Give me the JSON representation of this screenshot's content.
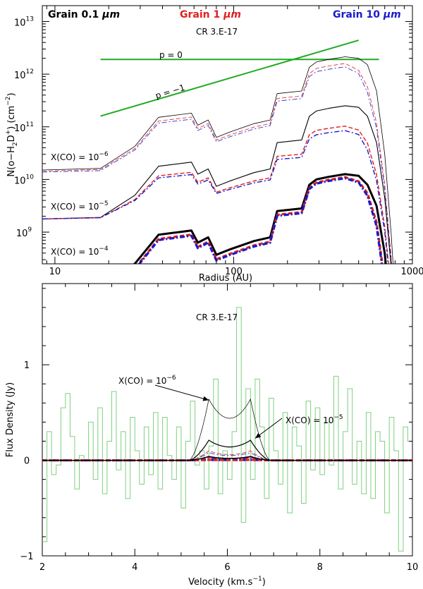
{
  "chart_data": [
    {
      "type": "line",
      "title": "CR 3.E-17",
      "xlabel": "Radius (AU)",
      "ylabel_main": "N(o−H",
      "ylabel_sub": "2",
      "ylabel_mid": "D",
      "ylabel_sup": "+",
      "ylabel_end": ") (cm",
      "ylabel_sup2": "−2",
      "ylabel_close": ")",
      "xscale": "log",
      "yscale": "log",
      "xlim": [
        8.5,
        1000
      ],
      "ylim": [
        250000000.0,
        20000000000000.0
      ],
      "xticks": [
        {
          "value": 10,
          "label": "10"
        },
        {
          "value": 100,
          "label": "100"
        },
        {
          "value": 1000,
          "label": "1000"
        }
      ],
      "yticks": [
        {
          "value": 1000000000.0,
          "base": "10",
          "exp": "9"
        },
        {
          "value": 10000000000.0,
          "base": "10",
          "exp": "10"
        },
        {
          "value": 100000000000.0,
          "base": "10",
          "exp": "11"
        },
        {
          "value": 1000000000000.0,
          "base": "10",
          "exp": "12"
        },
        {
          "value": 10000000000000.0,
          "base": "10",
          "exp": "13"
        }
      ],
      "legend": [
        {
          "prefix": "Grain 0.1 ",
          "mu": "μ",
          "unit": "m",
          "color": "#000000",
          "position": "top-left"
        },
        {
          "prefix": "Grain 1 ",
          "mu": "μ",
          "unit": "m",
          "color": "#e02020",
          "position": "top-center"
        },
        {
          "prefix": "Grain 10 ",
          "mu": "μ",
          "unit": "m",
          "color": "#1a1acc",
          "position": "top-right"
        }
      ],
      "annotations": [
        {
          "text": "p = 0"
        },
        {
          "text": "p = −1"
        },
        {
          "base": "X(CO) = 10",
          "exp": "−6"
        },
        {
          "base": "X(CO) = 10",
          "exp": "−5"
        },
        {
          "base": "X(CO) = 10",
          "exp": "−4"
        }
      ],
      "reference_lines": [
        {
          "name": "p = 0",
          "color": "#22aa22",
          "x": [
            18,
            650
          ],
          "y": [
            1900000000000.0,
            1900000000000.0
          ]
        },
        {
          "name": "p = -1",
          "color": "#22aa22",
          "x": [
            18,
            500
          ],
          "y": [
            160000000000.0,
            4400000000000.0
          ]
        }
      ],
      "x": [
        8.5,
        18,
        28,
        38,
        58,
        63,
        72,
        80,
        95,
        130,
        160,
        175,
        240,
        265,
        290,
        340,
        420,
        500,
        560,
        630,
        700,
        760,
        830
      ],
      "shape": [
        0,
        0.03,
        0.45,
        1.0,
        1.08,
        0.85,
        0.95,
        0.62,
        0.72,
        0.88,
        0.95,
        1.45,
        1.5,
        1.95,
        2.05,
        2.1,
        2.15,
        2.12,
        2.0,
        1.7,
        1.1,
        0.4,
        -0.35
      ],
      "series": [
        {
          "name": "Grain 0.1 μm, X(CO)=1e-6",
          "color": "#000000",
          "style": "solid",
          "width": 0.8,
          "base_log": 10.18,
          "amp": 1.0,
          "drop": [
            0,
            0,
            0,
            0,
            0,
            0,
            0,
            0,
            0,
            0,
            0,
            0,
            0,
            0,
            0,
            0,
            0,
            0,
            0,
            0.2,
            0.8,
            1.6,
            2.9
          ]
        },
        {
          "name": "Grain 1 μm, X(CO)=1e-6",
          "color": "#e02020",
          "style": "dashed",
          "width": 0.8,
          "base_log": 10.16,
          "amp": 0.95,
          "drop": [
            0,
            0,
            0,
            0,
            0,
            0,
            0,
            0,
            0,
            0,
            0,
            0,
            0,
            0,
            0,
            0,
            0,
            0.1,
            0.3,
            0.7,
            1.3,
            2.0,
            3.1
          ]
        },
        {
          "name": "Grain 10 μm, X(CO)=1e-6",
          "color": "#1a1acc",
          "style": "dashdot",
          "width": 0.8,
          "base_log": 10.14,
          "amp": 0.93,
          "drop": [
            0,
            0,
            0,
            0,
            0,
            0,
            0,
            0,
            0,
            0,
            0,
            0,
            0,
            0,
            0,
            0,
            0,
            0.1,
            0.35,
            0.75,
            1.35,
            2.05,
            3.15
          ]
        },
        {
          "name": "Grain 0.1 μm, X(CO)=1e-5",
          "color": "#000000",
          "style": "solid",
          "width": 1.1,
          "base_log": 9.25,
          "amp": 1.0,
          "drop": [
            0,
            0,
            0,
            0,
            0,
            0,
            0,
            0,
            0,
            0,
            0,
            0,
            0,
            0,
            0,
            0,
            0,
            0,
            0.05,
            0.25,
            0.7,
            1.3,
            2.35
          ]
        },
        {
          "name": "Grain 1 μm, X(CO)=1e-5",
          "color": "#e02020",
          "style": "dashed",
          "width": 1.4,
          "base_log": 9.25,
          "amp": 0.82,
          "drop": [
            0,
            0,
            0,
            0,
            0,
            0,
            0,
            0,
            0,
            0,
            0,
            0,
            0,
            0,
            0,
            0,
            0,
            0.05,
            0.2,
            0.55,
            1.05,
            1.65,
            2.55
          ]
        },
        {
          "name": "Grain 10 μm, X(CO)=1e-5",
          "color": "#1a1acc",
          "style": "dashdot",
          "width": 1.4,
          "base_log": 9.25,
          "amp": 0.78,
          "drop": [
            0,
            0,
            0,
            0,
            0,
            0,
            0,
            0,
            0,
            0,
            0,
            0,
            0,
            0,
            0,
            0,
            0,
            0.05,
            0.25,
            0.6,
            1.1,
            1.7,
            2.6
          ]
        },
        {
          "name": "Grain 0.1 μm, X(CO)=1e-4",
          "color": "#000000",
          "style": "solid",
          "width": 3.0,
          "base_log": 7.95,
          "amp": 1.0,
          "drop": [
            0,
            0,
            0,
            0,
            0,
            0,
            0,
            0,
            0,
            0,
            0,
            0,
            0,
            0,
            0,
            0,
            0,
            0,
            0.05,
            0.15,
            0.45,
            0.95,
            1.7
          ]
        },
        {
          "name": "Grain 1 μm, X(CO)=1e-4",
          "color": "#e02020",
          "style": "dashed",
          "width": 3.2,
          "base_log": 7.85,
          "amp": 1.02,
          "drop": [
            0,
            0,
            0,
            0,
            0,
            0,
            0,
            0,
            0,
            0,
            0,
            0,
            0,
            0,
            0,
            0,
            0,
            0.05,
            0.15,
            0.4,
            0.9,
            1.55,
            2.2
          ]
        },
        {
          "name": "Grain 10 μm, X(CO)=1e-4",
          "color": "#1a1acc",
          "style": "dashdot",
          "width": 3.2,
          "base_log": 7.83,
          "amp": 1.02,
          "drop": [
            0,
            0,
            0,
            0,
            0,
            0,
            0,
            0,
            0,
            0,
            0,
            0,
            0,
            0,
            0,
            0,
            0,
            0.05,
            0.18,
            0.45,
            0.95,
            1.6,
            2.25
          ]
        }
      ]
    },
    {
      "type": "line",
      "title": "CR 3.E-17",
      "xlabel": "Velocity (km.s",
      "xlabel_sup": "−1",
      "xlabel_close": ")",
      "ylabel": "Flux Density (Jy)",
      "xlim": [
        2,
        10
      ],
      "ylim": [
        -1,
        1.85
      ],
      "xticks": [
        {
          "value": 2,
          "label": "2"
        },
        {
          "value": 4,
          "label": "4"
        },
        {
          "value": 6,
          "label": "6"
        },
        {
          "value": 8,
          "label": "8"
        },
        {
          "value": 10,
          "label": "10"
        }
      ],
      "yticks": [
        {
          "value": -1,
          "label": "−1"
        },
        {
          "value": 0,
          "label": "0"
        },
        {
          "value": 1,
          "label": "1"
        }
      ],
      "annotations": [
        {
          "base": "X(CO) = 10",
          "exp": "−6",
          "arrow_to": {
            "x": 5.6,
            "y": 0.63
          }
        },
        {
          "base": "X(CO) = 10",
          "exp": "−5",
          "arrow_to": {
            "x": 6.6,
            "y": 0.23
          }
        }
      ],
      "observed": {
        "name": "observed spectrum",
        "color": "#7fd07f",
        "x_start": 2.0,
        "step": 0.1,
        "y": [
          -0.85,
          0.3,
          -0.15,
          -0.05,
          0.55,
          0.7,
          0.25,
          -0.3,
          0.05,
          0.0,
          0.4,
          -0.2,
          0.55,
          -0.35,
          0.2,
          0.72,
          -0.1,
          0.3,
          -0.4,
          0.45,
          0.1,
          -0.25,
          0.35,
          -0.15,
          0.5,
          -0.3,
          0.45,
          0.05,
          -0.2,
          0.35,
          -0.5,
          0.2,
          0.62,
          -0.05,
          0.1,
          -0.3,
          0.15,
          0.85,
          -0.35,
          0.1,
          -0.2,
          0.3,
          1.6,
          -0.65,
          0.75,
          -0.2,
          0.85,
          0.35,
          -0.4,
          0.65,
          0.1,
          -0.25,
          0.5,
          -0.55,
          0.35,
          0.15,
          -0.45,
          0.62,
          -0.1,
          0.55,
          -0.15,
          0.4,
          -0.05,
          0.88,
          -0.3,
          0.3,
          0.75,
          -0.25,
          0.2,
          -0.35,
          0.5,
          -0.4,
          0.3,
          0.2,
          -0.55,
          0.45,
          0.1,
          -0.95,
          0.35,
          0.2
        ]
      },
      "series": [
        {
          "name": "Grain 0.1 μm, X(CO)=1e-6",
          "color": "#000000",
          "style": "solid",
          "width": 0.7,
          "peak": 0.64,
          "trough": 0.44
        },
        {
          "name": "Grain 0.1 μm, X(CO)=1e-5",
          "color": "#000000",
          "style": "solid",
          "width": 1.2,
          "peak": 0.21,
          "trough": 0.14
        },
        {
          "name": "Grain 0.1 μm, X(CO)=1e-4",
          "color": "#000000",
          "style": "solid",
          "width": 1.5,
          "peak": 0.04,
          "trough": 0.02
        },
        {
          "name": "Grain 1 μm, X(CO)=1e-6",
          "color": "#e02020",
          "style": "dashed",
          "width": 0.8,
          "peak": 0.1,
          "trough": 0.06
        },
        {
          "name": "Grain 10 μm, X(CO)=1e-6",
          "color": "#1a1acc",
          "style": "dashdot",
          "width": 0.8,
          "peak": 0.08,
          "trough": 0.05
        },
        {
          "name": "Grain 1 μm, X(CO)=1e-5",
          "color": "#e02020",
          "style": "dashed",
          "width": 1.5,
          "peak": 0.03,
          "trough": 0.02
        },
        {
          "name": "Grain 10 μm, X(CO)=1e-5",
          "color": "#1a1acc",
          "style": "dashdot",
          "width": 1.5,
          "peak": 0.025,
          "trough": 0.015
        },
        {
          "name": "Grain 1 μm, X(CO)=1e-4",
          "color": "#e02020",
          "style": "dashed",
          "width": 3.0,
          "peak": 0.005,
          "trough": 0.003
        },
        {
          "name": "Grain 10 μm, X(CO)=1e-4",
          "color": "#1a1acc",
          "style": "dashdot",
          "width": 3.0,
          "peak": 0.004,
          "trough": 0.002
        }
      ],
      "profile": {
        "center": 6.05,
        "peak_sep": 0.45,
        "half_width": 0.88
      }
    }
  ]
}
